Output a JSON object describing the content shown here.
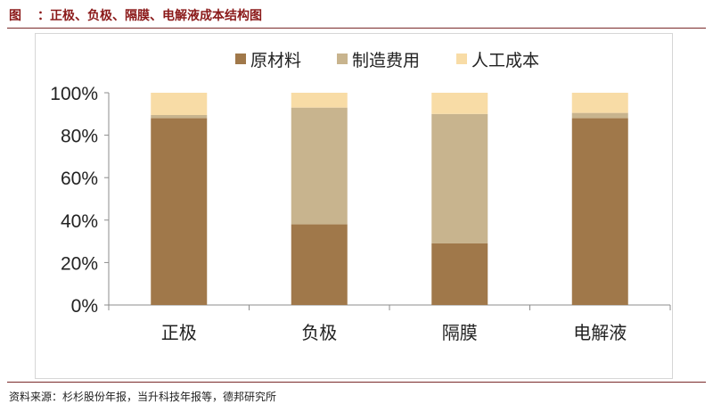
{
  "header": {
    "prefix": "图",
    "title": "：正极、负极、隔膜、电解液成本结构图"
  },
  "source": "资料来源：杉杉股份年报，当升科技年报等，德邦研究所",
  "colors": {
    "raw_materials": "#A0784A",
    "manufacturing": "#C8B48E",
    "labor": "#F8DCA6",
    "title_color": "#8B1A1A"
  },
  "chart_data": {
    "type": "bar",
    "stacked": true,
    "categories": [
      "正极",
      "负极",
      "隔膜",
      "电解液"
    ],
    "series": [
      {
        "name": "原材料",
        "values": [
          88,
          38,
          29,
          88
        ]
      },
      {
        "name": "制造费用",
        "values": [
          1.5,
          55,
          61,
          2.5
        ]
      },
      {
        "name": "人工成本",
        "values": [
          10.5,
          7,
          10,
          9.5
        ]
      }
    ],
    "y_ticks": [
      "0%",
      "20%",
      "40%",
      "60%",
      "80%",
      "100%"
    ],
    "ylim": [
      0,
      100
    ],
    "legend_position": "top",
    "grid": false
  }
}
